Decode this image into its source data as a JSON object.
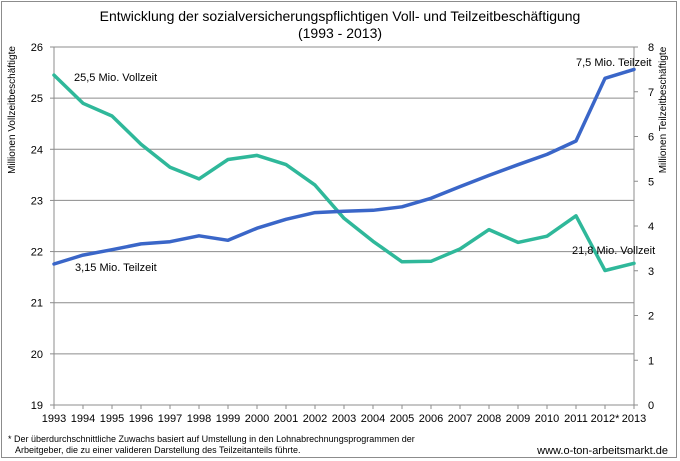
{
  "chart_data": {
    "type": "line",
    "title": "Entwicklung der sozialversicherungspflichtigen Voll- und Teilzeitbeschäftigung",
    "subtitle": "(1993 - 2013)",
    "x": [
      "1993",
      "1994",
      "1995",
      "1996",
      "1997",
      "1998",
      "1999",
      "2000",
      "2001",
      "2002",
      "2003",
      "2004",
      "2005",
      "2006",
      "2007",
      "2008",
      "2009",
      "2010",
      "2011",
      "2012*",
      "2013"
    ],
    "y_left": {
      "label": "Millionen Vollzeitbeschäftigte",
      "min": 19,
      "max": 26,
      "ticks": [
        19,
        20,
        21,
        22,
        23,
        24,
        25,
        26
      ]
    },
    "y_right": {
      "label": "Millionen Teilzeitbeschäftigte",
      "min": 0,
      "max": 8,
      "ticks": [
        0,
        1,
        2,
        3,
        4,
        5,
        6,
        7,
        8
      ]
    },
    "grid": true,
    "series": [
      {
        "axis": "left",
        "color": "#2fb89a",
        "values": [
          25.45,
          24.9,
          24.65,
          24.1,
          23.65,
          23.42,
          23.8,
          23.88,
          23.7,
          23.3,
          22.65,
          22.2,
          21.8,
          21.81,
          22.05,
          22.43,
          22.18,
          22.3,
          22.7,
          21.63,
          21.77
        ]
      },
      {
        "axis": "right",
        "color": "#3a66c8",
        "values": [
          3.15,
          3.35,
          3.47,
          3.6,
          3.65,
          3.78,
          3.68,
          3.95,
          4.15,
          4.3,
          4.33,
          4.35,
          4.43,
          4.62,
          4.88,
          5.13,
          5.37,
          5.6,
          5.9,
          7.3,
          7.5
        ]
      }
    ],
    "annotations": [
      {
        "text": "25,5 Mio. Vollzeit"
      },
      {
        "text": "3,15 Mio. Teilzeit"
      },
      {
        "text": "7,5 Mio. Teilzeit"
      },
      {
        "text": "21,8 Mio. Vollzeit"
      }
    ]
  },
  "footnote": {
    "line1": "* Der überdurchschnittliche Zuwachs basiert auf Umstellung in den Lohnabrechnungsprogrammen der",
    "line2": "Arbeitgeber, die zu einer valideren Darstellung des Teilzeitanteils führte."
  },
  "source": "www.o-ton-arbeitsmarkt.de"
}
